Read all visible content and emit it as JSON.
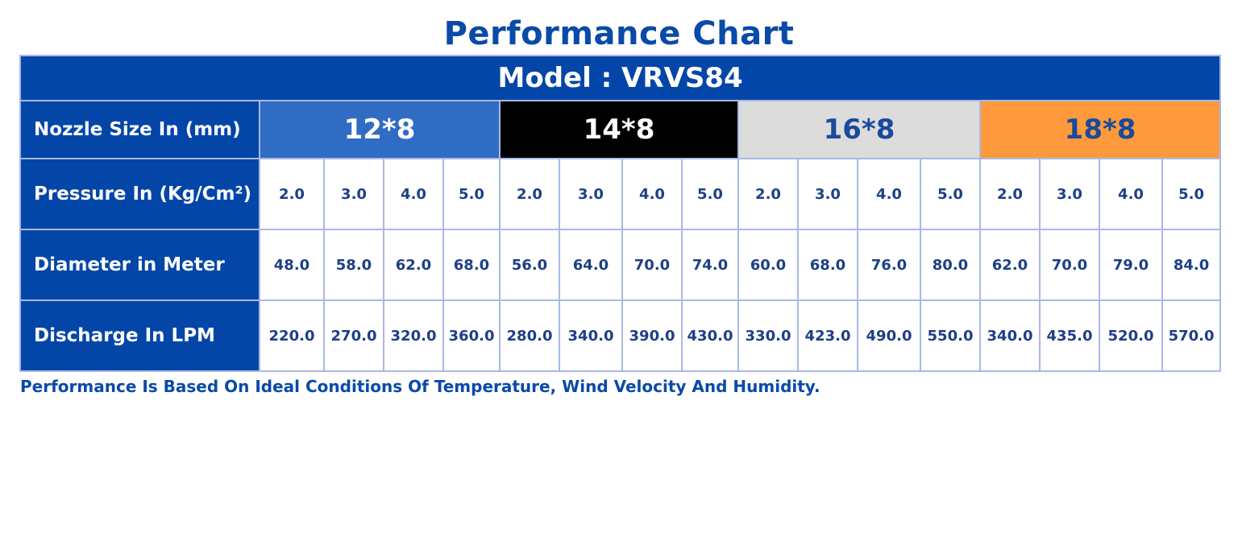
{
  "title": "Performance Chart",
  "model_label": "Model : VRVS84",
  "nozzle_row": {
    "label": "Nozzle Size In (mm)",
    "sizes": [
      "12*8",
      "14*8",
      "16*8",
      "18*8"
    ]
  },
  "rows": [
    {
      "label": "Pressure In (Kg/Cm²)",
      "values": [
        "2.0",
        "3.0",
        "4.0",
        "5.0",
        "2.0",
        "3.0",
        "4.0",
        "5.0",
        "2.0",
        "3.0",
        "4.0",
        "5.0",
        "2.0",
        "3.0",
        "4.0",
        "5.0"
      ]
    },
    {
      "label": "Diameter in Meter",
      "values": [
        "48.0",
        "58.0",
        "62.0",
        "68.0",
        "56.0",
        "64.0",
        "70.0",
        "74.0",
        "60.0",
        "68.0",
        "76.0",
        "80.0",
        "62.0",
        "70.0",
        "79.0",
        "84.0"
      ]
    },
    {
      "label": "Discharge In LPM",
      "values": [
        "220.0",
        "270.0",
        "320.0",
        "360.0",
        "280.0",
        "340.0",
        "390.0",
        "430.0",
        "330.0",
        "423.0",
        "490.0",
        "550.0",
        "340.0",
        "435.0",
        "520.0",
        "570.0"
      ]
    }
  ],
  "footnote": "Performance Is Based On Ideal Conditions Of Temperature, Wind Velocity And Humidity.",
  "colors": {
    "brand_blue": "#0446a8",
    "nozzle_12x8": "#306cc4",
    "nozzle_14x8": "#000000",
    "nozzle_16x8": "#dcdcdc",
    "nozzle_18x8": "#ff9a3c"
  }
}
